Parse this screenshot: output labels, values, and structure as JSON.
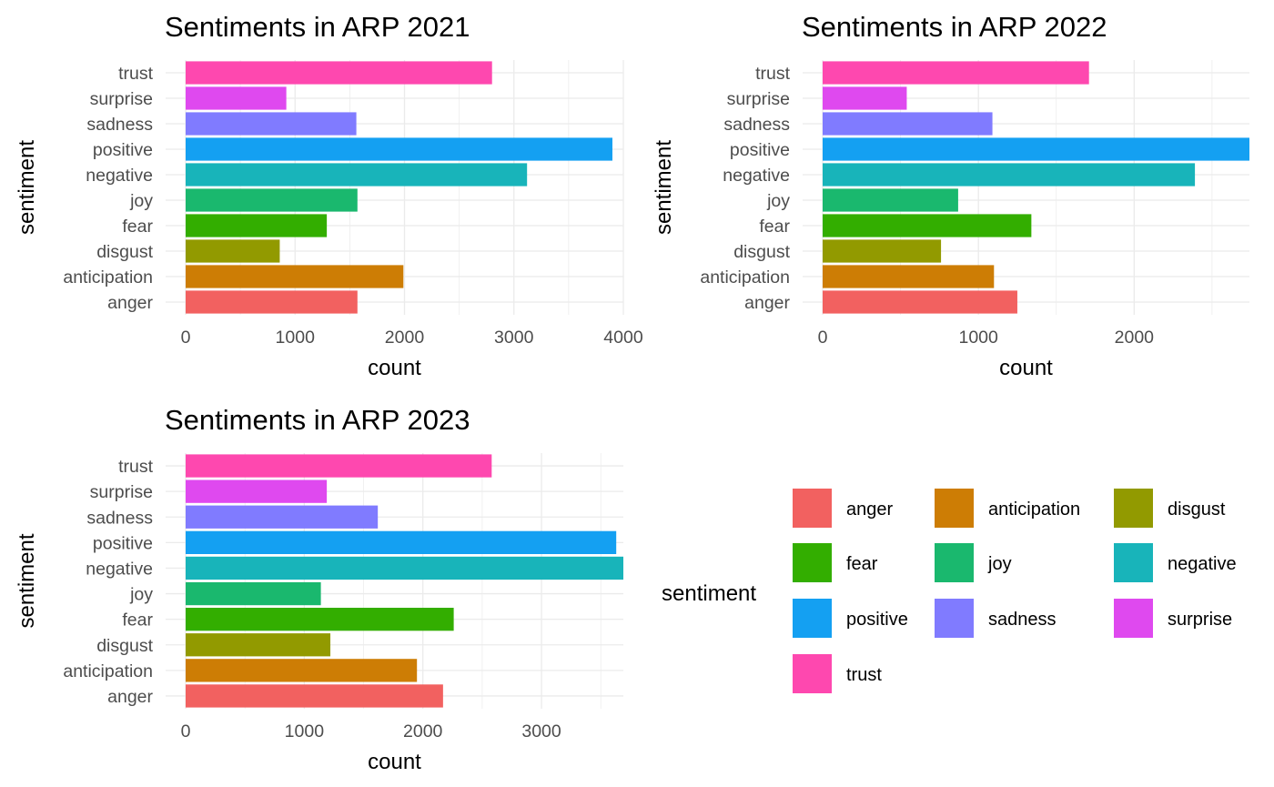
{
  "chart_data": [
    {
      "type": "bar",
      "orientation": "horizontal",
      "title": "Sentiments in ARP 2021",
      "xlabel": "count",
      "ylabel": "sentiment",
      "categories": [
        "anger",
        "anticipation",
        "disgust",
        "fear",
        "joy",
        "negative",
        "positive",
        "sadness",
        "surprise",
        "trust"
      ],
      "values": [
        1570,
        1990,
        860,
        1290,
        1570,
        3120,
        3900,
        1560,
        920,
        2800
      ],
      "xlim": [
        0,
        4000
      ],
      "xticks": [
        0,
        1000,
        2000,
        3000,
        4000
      ],
      "grid": true
    },
    {
      "type": "bar",
      "orientation": "horizontal",
      "title": "Sentiments in ARP 2022",
      "xlabel": "count",
      "ylabel": "sentiment",
      "categories": [
        "anger",
        "anticipation",
        "disgust",
        "fear",
        "joy",
        "negative",
        "positive",
        "sadness",
        "surprise",
        "trust"
      ],
      "values": [
        1250,
        1100,
        760,
        1340,
        870,
        2390,
        2740,
        1090,
        540,
        1710
      ],
      "xlim": [
        0,
        2740
      ],
      "xticks": [
        0,
        1000,
        2000
      ],
      "grid": true
    },
    {
      "type": "bar",
      "orientation": "horizontal",
      "title": "Sentiments in ARP 2023",
      "xlabel": "count",
      "ylabel": "sentiment",
      "categories": [
        "anger",
        "anticipation",
        "disgust",
        "fear",
        "joy",
        "negative",
        "positive",
        "sadness",
        "surprise",
        "trust"
      ],
      "values": [
        2170,
        1950,
        1220,
        2260,
        1140,
        3690,
        3630,
        1620,
        1190,
        2580
      ],
      "xlim": [
        0,
        3690
      ],
      "xticks": [
        0,
        1000,
        2000,
        3000
      ],
      "grid": true
    }
  ],
  "legend": {
    "title": "sentiment",
    "placement": "bottom-right",
    "items": [
      {
        "label": "anger",
        "color": "#F8766D"
      },
      {
        "label": "anticipation",
        "color": "#D39200"
      },
      {
        "label": "disgust",
        "color": "#93AA00"
      },
      {
        "label": "fear",
        "color": "#00BA38"
      },
      {
        "label": "joy",
        "color": "#00C19F"
      },
      {
        "label": "negative",
        "color": "#00B9E3"
      },
      {
        "label": "positive",
        "color": "#619CFF"
      },
      {
        "label": "sadness",
        "color": "#8E7BFF"
      },
      {
        "label": "surprise",
        "color": "#DB72FB"
      },
      {
        "label": "trust",
        "color": "#FF61C3"
      }
    ]
  },
  "colors": {
    "anger": "#F26160",
    "anticipation": "#CD7D05",
    "disgust": "#929A00",
    "fear": "#33AE00",
    "joy": "#1AB86E",
    "negative": "#18B4BA",
    "positive": "#14A0F2",
    "sadness": "#807BFF",
    "surprise": "#DF49EF",
    "trust": "#FE48AF"
  }
}
